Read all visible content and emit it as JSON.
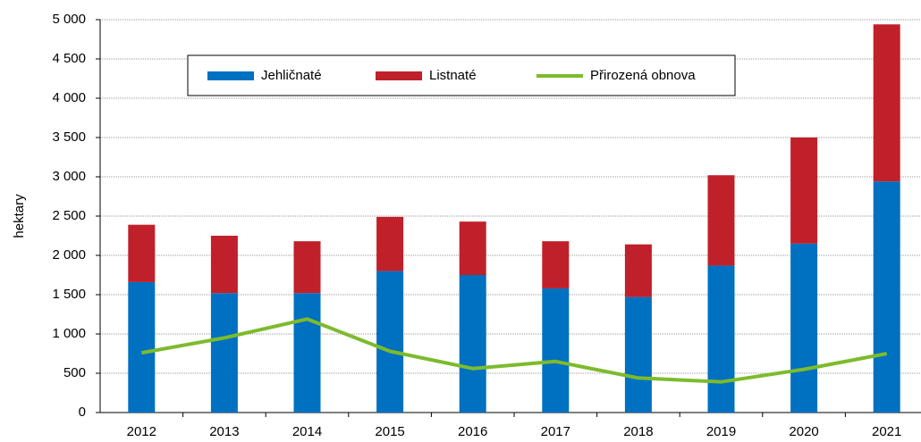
{
  "chart_data": {
    "type": "stacked-bar-line",
    "y_label": "hektary",
    "categories": [
      "2012",
      "2013",
      "2014",
      "2015",
      "2016",
      "2017",
      "2018",
      "2019",
      "2020",
      "2021"
    ],
    "series": [
      {
        "name": "Jehličnaté",
        "type": "bar",
        "color": "#0070c0",
        "values": [
          1660,
          1520,
          1520,
          1800,
          1750,
          1580,
          1470,
          1870,
          2150,
          2940
        ]
      },
      {
        "name": "Listnaté",
        "type": "bar",
        "color": "#c0202a",
        "values": [
          730,
          730,
          660,
          690,
          680,
          600,
          670,
          1150,
          1350,
          2000
        ]
      },
      {
        "name": "Přirozená obnova",
        "type": "line",
        "color": "#7dbb2c",
        "values": [
          760,
          950,
          1190,
          780,
          560,
          650,
          440,
          390,
          550,
          750
        ]
      }
    ],
    "ylim": [
      0,
      5000
    ],
    "yticks": [
      0,
      500,
      {
        "value": 1000,
        "label": "1 000"
      },
      {
        "value": 1500,
        "label": "1 500"
      },
      {
        "value": 2000,
        "label": "2 000"
      },
      {
        "value": 2500,
        "label": "2 500"
      },
      {
        "value": 3000,
        "label": "3 000"
      },
      {
        "value": 3500,
        "label": "3 500"
      },
      {
        "value": 4000,
        "label": "4 000"
      },
      {
        "value": 4500,
        "label": "4 500"
      },
      {
        "value": 5000,
        "label": "5 000"
      }
    ],
    "grid": true
  }
}
